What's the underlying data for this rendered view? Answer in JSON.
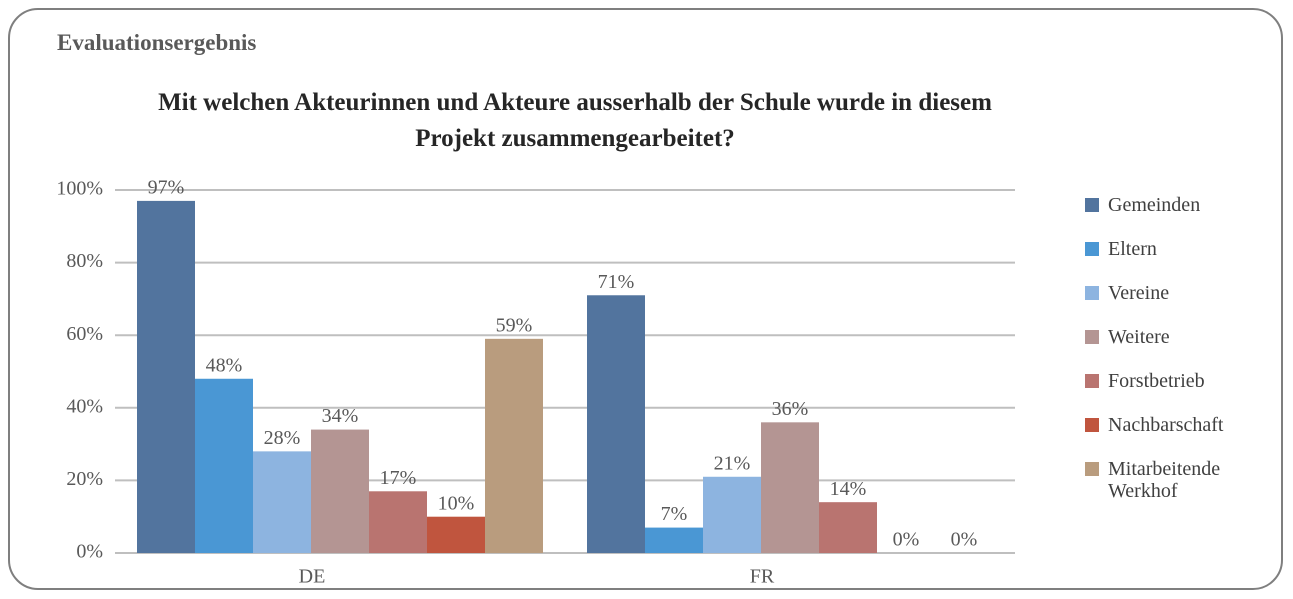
{
  "header": {
    "title": "Evaluationsergebnis"
  },
  "chart_data": {
    "type": "bar",
    "title": "Mit welchen Akteurinnen und Akteure ausserhalb der Schule wurde in diesem Projekt zusammengearbeitet?",
    "categories": [
      "DE",
      "FR"
    ],
    "series": [
      {
        "name": "Gemeinden",
        "color": "#52749e",
        "values": [
          97,
          71
        ],
        "value_labels": [
          "97%",
          "71%"
        ]
      },
      {
        "name": "Eltern",
        "color": "#4a97d4",
        "values": [
          48,
          7
        ],
        "value_labels": [
          "48%",
          "7%"
        ]
      },
      {
        "name": "Vereine",
        "color": "#8db4e0",
        "values": [
          28,
          21
        ],
        "value_labels": [
          "28%",
          "21%"
        ]
      },
      {
        "name": "Weitere",
        "color": "#b49593",
        "values": [
          34,
          36
        ],
        "value_labels": [
          "34%",
          "36%"
        ]
      },
      {
        "name": "Forstbetrieb",
        "color": "#b97470",
        "values": [
          17,
          14
        ],
        "value_labels": [
          "17%",
          "14%"
        ]
      },
      {
        "name": "Nachbarschaft",
        "color": "#c0553e",
        "values": [
          10,
          0
        ],
        "value_labels": [
          "10%",
          "0%"
        ]
      },
      {
        "name": "Mitarbeitende Werkhof",
        "color": "#b99c7e",
        "values": [
          59,
          0
        ],
        "value_labels": [
          "59%",
          "0%"
        ]
      }
    ],
    "ylim": [
      0,
      100
    ],
    "yticks": [
      {
        "value": 0,
        "label": "0%"
      },
      {
        "value": 20,
        "label": "20%"
      },
      {
        "value": 40,
        "label": "40%"
      },
      {
        "value": 60,
        "label": "60%"
      },
      {
        "value": 80,
        "label": "80%"
      },
      {
        "value": 100,
        "label": "100%"
      }
    ],
    "grid": true,
    "legend": "right"
  }
}
